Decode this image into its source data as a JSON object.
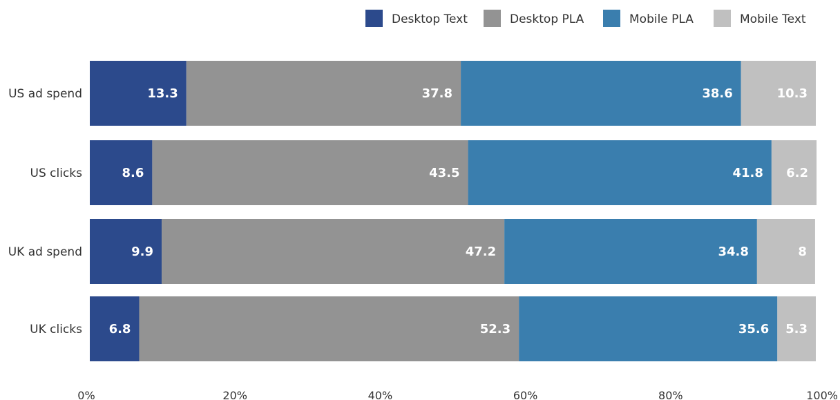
{
  "chart_data": {
    "type": "bar",
    "orientation": "horizontal",
    "stacked": true,
    "normalized_percent": true,
    "categories": [
      "US ad spend",
      "US clicks",
      "UK ad spend",
      "UK clicks"
    ],
    "series": [
      {
        "name": "Desktop Text",
        "color": "#2c4a8c",
        "values": [
          13.3,
          8.6,
          9.9,
          6.8
        ]
      },
      {
        "name": "Desktop PLA",
        "color": "#939393",
        "values": [
          37.8,
          43.5,
          47.2,
          52.3
        ]
      },
      {
        "name": "Mobile PLA",
        "color": "#3a7eae",
        "values": [
          38.6,
          41.8,
          34.8,
          35.6
        ]
      },
      {
        "name": "Mobile Text",
        "color": "#c0c0c0",
        "values": [
          10.3,
          6.2,
          8,
          5.3
        ]
      }
    ],
    "x_ticks": [
      "0%",
      "20%",
      "40%",
      "60%",
      "80%",
      "100%"
    ],
    "xlim": [
      0,
      100
    ],
    "grid": false,
    "legend_position": "top-right",
    "title": "",
    "xlabel": "",
    "ylabel": ""
  }
}
